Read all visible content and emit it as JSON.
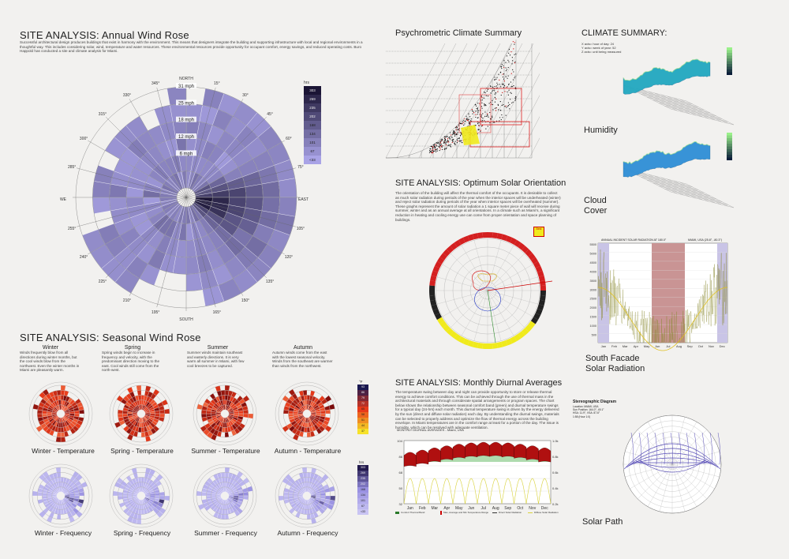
{
  "wind_rose": {
    "title": "SITE ANALYSIS:  Annual Wind Rose",
    "intro": "Successful architectural design produces buildings that exist in harmony with the environment. This means that designers integrate the building and supporting infrastructure with local and regional environments in a thoughtful way. This includes considering solar, wind, temperature and water resources. These environmental resources provide opportunity for occupant comfort, energy savings, and reduced operating costs. Buro Happold has conducted a site and climate analysis for Miami.",
    "compass": {
      "north": "NORTH",
      "south": "SOUTH",
      "east": "EAST",
      "west": "WE"
    },
    "degrees": [
      "15°",
      "30°",
      "45°",
      "60°",
      "75°",
      "105°",
      "120°",
      "135°",
      "150°",
      "165°",
      "195°",
      "210°",
      "225°",
      "240°",
      "255°",
      "285°",
      "300°",
      "315°",
      "330°",
      "345°"
    ],
    "rings": [
      "31 mph",
      "25 mph",
      "18 mph",
      "12 mph",
      "6 mph"
    ],
    "legend_title": "hrs",
    "legend": [
      "303",
      "269",
      "235",
      "202",
      "168",
      "134",
      "101",
      "67",
      "<33"
    ],
    "colors": {
      "light": "#a9a3e6",
      "dark": "#1b1535"
    }
  },
  "seasonal": {
    "title": "SITE ANALYSIS:  Seasonal Wind Rose",
    "seasons": [
      {
        "name": "Winter",
        "text": "Winds frequently blow from all directions during winter months, but the cool winds blow from the northwest. Even the winter months in Miami are pleasantly warm."
      },
      {
        "name": "Spring",
        "text": "Spring winds begin to increase in frequency and velocity, with the predominant direction moving to the east. Cool winds still come from the north-west."
      },
      {
        "name": "Summer",
        "text": "Summer winds maintain southeast and easterly directions. It is very warm all summer in Miami, with few cool breezes to be captured."
      },
      {
        "name": "Autumn",
        "text": "Autumn winds come from the east with the lowest seasonal velocity. Winds from the southeast are warmer than winds from the northwest."
      }
    ],
    "temp_captions": [
      "Winter - Temperature",
      "Spring - Temperature",
      "Summer - Temperature",
      "Autumn - Temperature"
    ],
    "freq_captions": [
      "Winter - Frequency",
      "Spring - Frequency",
      "Summer - Frequency",
      "Autumn - Frequency"
    ],
    "temp_legend_title": "°F",
    "temp_legend": [
      "93",
      "86",
      "79",
      "72",
      "65",
      "58",
      "51",
      "44",
      "37"
    ],
    "freq_legend_title": "hrs",
    "freq_legend": [
      "303",
      "269",
      "235",
      "202",
      "168",
      "134",
      "101",
      "67",
      "<33"
    ]
  },
  "psychro": {
    "title": "Psychrometric Climate Summary"
  },
  "solar_orientation": {
    "title": "SITE ANALYSIS:  Optimum Solar Orientation",
    "text": "The orientation of the building will affect the thermal comfort of the occupants. It is desirable to collect as much solar radiation during periods of the year when the interior spaces will be underheated (winter) and reject solar radiation during periods of the year when interior spaces will be overheated (summer). These graphs represent the amount of solar radiation a 1 square meter piece of wall will receive during summer, winter and as an annual average at all orientations. In a climate such as Miami's, a significant reduction in heating and cooling energy use can come from proper orientation and space planning of buildings.",
    "legend_best": "Best"
  },
  "diurnal": {
    "title": "SITE ANALYSIS:  Monthly Diurnal Averages",
    "text": "The temperature swing between day and night can provide opportunity to store or release thermal energy to achieve comfort conditions. This can be achieved through the use of thermal mass in the architectural materials and through considerate spatial arrangements or program spaces. The chart below shows the relationship between seasonal comfort band (green) and diurnal temperature swings for a typical day (24-hrs) each month. This diurnal temperature swing is driven by the energy delivered by the sun (direct and diffuse solar radiation) each day. By understanding the diurnal swings, materials can be selected to properly address and optimize the flow of thermal energy across the building envelope. In Miami temperatures are in the comfort range at least for a portion of the day. The issue is humidity, which can be resolved with adequate ventilation.",
    "chart_title": "MONTHLY DIURNAL AVERAGES - Miami, USA",
    "months": [
      "Jan",
      "Feb",
      "Mar",
      "Apr",
      "May",
      "Jun",
      "Jul",
      "Aug",
      "Sep",
      "Oct",
      "Nov",
      "Dec"
    ],
    "y_left": [
      "104",
      "86",
      "68",
      "50",
      "32"
    ],
    "y_right": [
      "1.0k",
      "0.8k",
      "0.6k",
      "0.4k",
      "0.2k"
    ],
    "legend": [
      "Comfort Thermal Band",
      "Max, Average and Min Temperature Range",
      "Direct Solar Radiation",
      "Diffuse Solar Radiation"
    ]
  },
  "climate": {
    "title": "CLIMATE SUMMARY:",
    "axis_notes": [
      "X axis= hour of day: 24",
      "Y axis= week of year: 52",
      "Z axis= unit being measured"
    ],
    "humidity": "Humidity",
    "cloud_line1": "Cloud",
    "cloud_line2": "Cover"
  },
  "south_facade": {
    "chart_title": "ANNUAL INCIDENT SOLAR RADIATION AT 180.0°",
    "location": "MIAMI, USA (25.8°, -80.3°)",
    "y_ticks": [
      "5500",
      "5000",
      "4500",
      "4000",
      "3500",
      "3000",
      "2500",
      "2000",
      "1500",
      "1000",
      "500"
    ],
    "months": [
      "Jan",
      "Feb",
      "Mar",
      "Apr",
      "May",
      "Jun",
      "Jul",
      "Aug",
      "Sep",
      "Oct",
      "Nov",
      "Dec"
    ],
    "caption_line1": "South Facade",
    "caption_line2": "Solar Radiation"
  },
  "stereo": {
    "title": "Stereographic Diagram",
    "notes": [
      "Location: MIAMI, USA",
      "Sun Position: 164.0°, 49.1°",
      "HSA: 11.9°, VSA: 87.6°",
      "1:58 (Hour 1:0)"
    ],
    "caption": "Solar Path"
  }
}
